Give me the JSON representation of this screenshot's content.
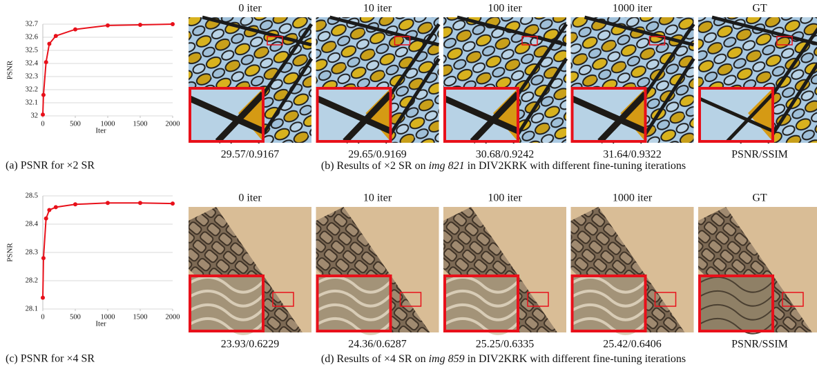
{
  "chart_data": [
    {
      "type": "line",
      "x": [
        0,
        10,
        50,
        100,
        200,
        500,
        1000,
        1500,
        2000
      ],
      "values": [
        32.01,
        32.16,
        32.41,
        32.55,
        32.61,
        32.66,
        32.69,
        32.695,
        32.7
      ],
      "color": "#e8101a",
      "xlim": [
        0,
        2000
      ],
      "xticks": [
        0,
        500,
        1000,
        1500,
        2000
      ],
      "ylim": [
        32,
        32.7
      ],
      "yticks": [
        32,
        32.1,
        32.2,
        32.3,
        32.4,
        32.5,
        32.6,
        32.7
      ],
      "xlabel": "Iter",
      "ylabel": "PSNR",
      "grid": true
    },
    {
      "type": "line",
      "x": [
        0,
        10,
        50,
        100,
        200,
        500,
        1000,
        1500,
        2000
      ],
      "values": [
        28.14,
        28.28,
        28.42,
        28.45,
        28.46,
        28.47,
        28.475,
        28.475,
        28.473
      ],
      "color": "#e8101a",
      "xlim": [
        0,
        2000
      ],
      "xticks": [
        0,
        500,
        1000,
        1500,
        2000
      ],
      "ylim": [
        28.1,
        28.5
      ],
      "yticks": [
        28.1,
        28.2,
        28.3,
        28.4,
        28.5
      ],
      "xlabel": "Iter",
      "ylabel": "PSNR",
      "grid": true
    }
  ],
  "image_rows": [
    {
      "column_labels": [
        "0 iter",
        "10 iter",
        "100 iter",
        "1000 iter",
        "GT"
      ],
      "metrics": [
        "29.57/0.9167",
        "29.65/0.9169",
        "30.68/0.9242",
        "31.64/0.9322",
        "PSNR/SSIM"
      ]
    },
    {
      "column_labels": [
        "0 iter",
        "10 iter",
        "100 iter",
        "1000 iter",
        "GT"
      ],
      "metrics": [
        "23.93/0.6229",
        "24.36/0.6287",
        "25.25/0.6335",
        "25.42/0.6406",
        "PSNR/SSIM"
      ]
    }
  ],
  "captions": [
    {
      "chart": "(a) PSNR for ×2 SR",
      "images": {
        "before": "(b) Results of ×2 SR on ",
        "italic": "img 821",
        "after": " in DIV2KRK with different fine-tuning iterations"
      }
    },
    {
      "chart": "(c) PSNR for ×4 SR",
      "images": {
        "before": "(d) Results of ×4 SR on ",
        "italic": "img 859",
        "after": " in DIV2KRK with different fine-tuning iterations"
      }
    }
  ]
}
